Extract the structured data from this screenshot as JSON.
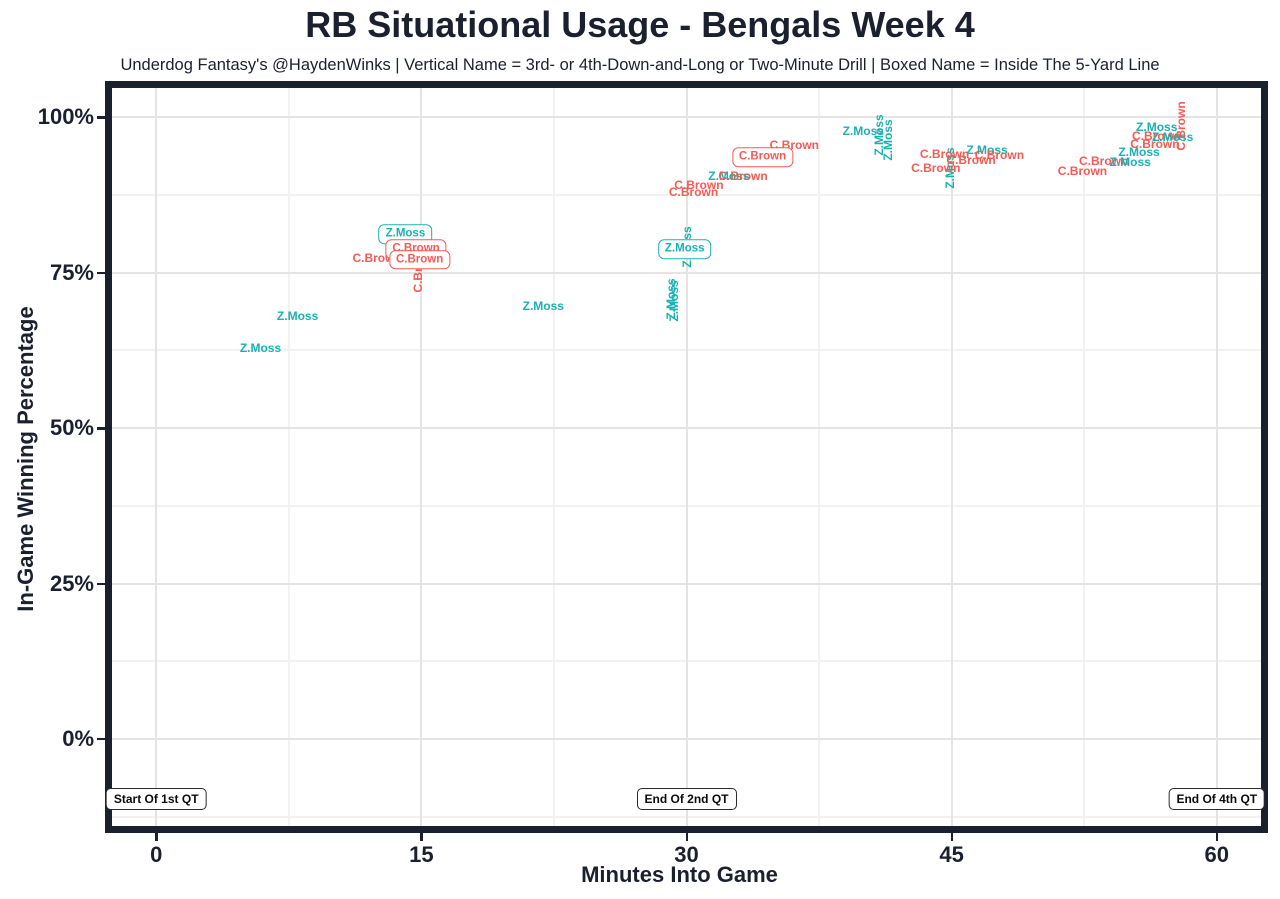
{
  "colors": {
    "axis_dark": "#1b202e",
    "grid_major": "#e4e4e4",
    "grid_minor": "#f2f2f2",
    "annotation_border": "#2b2b2b",
    "player_colors": {
      "Z.Moss": "#1bb0b2",
      "C.Brown": "#f25c55"
    }
  },
  "chart_data": {
    "type": "scatter",
    "title": "RB Situational Usage - Bengals Week 4",
    "subtitle": "Underdog Fantasy's @HaydenWinks | Vertical Name = 3rd- or 4th-Down-and-Long or Two-Minute Drill | Boxed Name = Inside The 5-Yard Line",
    "xlabel": "Minutes Into Game",
    "ylabel": "In-Game Winning Percentage",
    "xlim": [
      -2.5,
      62.5
    ],
    "ylim": [
      -14.0,
      104.7
    ],
    "x_tick_values": [
      0,
      15,
      30,
      45,
      60
    ],
    "x_tick_labels": [
      "0",
      "15",
      "30",
      "45",
      "60"
    ],
    "x_minor_ticks": [
      7.5,
      22.5,
      37.5,
      52.5
    ],
    "y_tick_values": [
      0,
      25,
      50,
      75,
      100
    ],
    "y_tick_labels": [
      "0%",
      "25%",
      "50%",
      "75%",
      "100%"
    ],
    "y_minor_ticks": [
      -12.5,
      12.5,
      37.5,
      62.5,
      87.5
    ],
    "grid": true,
    "legend": "none",
    "points": [
      {
        "player": "Z.Moss",
        "x": 5.9,
        "y": 62.9,
        "orientation": "h",
        "boxed": false
      },
      {
        "player": "Z.Moss",
        "x": 8.0,
        "y": 68.1,
        "orientation": "h",
        "boxed": false
      },
      {
        "player": "C.Brown",
        "x": 12.5,
        "y": 77.4,
        "orientation": "h",
        "boxed": false
      },
      {
        "player": "C.Brown",
        "x": 14.8,
        "y": 75.7,
        "orientation": "v",
        "boxed": false
      },
      {
        "player": "Z.Moss",
        "x": 14.1,
        "y": 81.2,
        "orientation": "h",
        "boxed": true
      },
      {
        "player": "C.Brown",
        "x": 14.7,
        "y": 78.8,
        "orientation": "h",
        "boxed": true
      },
      {
        "player": "C.Brown",
        "x": 14.9,
        "y": 77.1,
        "orientation": "h",
        "boxed": true
      },
      {
        "player": "Z.Moss",
        "x": 21.9,
        "y": 69.6,
        "orientation": "h",
        "boxed": false
      },
      {
        "player": "Z.Moss",
        "x": 29.1,
        "y": 70.7,
        "orientation": "v",
        "boxed": false
      },
      {
        "player": "Z.Moss",
        "x": 29.3,
        "y": 70.4,
        "orientation": "v",
        "boxed": false
      },
      {
        "player": "Z.Moss",
        "x": 30.0,
        "y": 79.1,
        "orientation": "v",
        "boxed": false
      },
      {
        "player": "Z.Moss",
        "x": 29.9,
        "y": 78.8,
        "orientation": "h",
        "boxed": true
      },
      {
        "player": "C.Brown",
        "x": 30.7,
        "y": 89.1,
        "orientation": "h",
        "boxed": false
      },
      {
        "player": "C.Brown",
        "x": 30.4,
        "y": 88.0,
        "orientation": "h",
        "boxed": false
      },
      {
        "player": "Z.Moss",
        "x": 32.4,
        "y": 90.5,
        "orientation": "h",
        "boxed": false
      },
      {
        "player": "C.Brown",
        "x": 33.2,
        "y": 90.5,
        "orientation": "h",
        "boxed": false
      },
      {
        "player": "C.Brown",
        "x": 34.3,
        "y": 93.6,
        "orientation": "h",
        "boxed": true
      },
      {
        "player": "C.Brown",
        "x": 36.1,
        "y": 95.5,
        "orientation": "h",
        "boxed": false
      },
      {
        "player": "Z.Moss",
        "x": 40.0,
        "y": 97.8,
        "orientation": "h",
        "boxed": false
      },
      {
        "player": "Z.Moss",
        "x": 40.9,
        "y": 97.1,
        "orientation": "v",
        "boxed": false
      },
      {
        "player": "Z.Moss",
        "x": 41.4,
        "y": 96.3,
        "orientation": "v",
        "boxed": false
      },
      {
        "player": "C.Brown",
        "x": 44.1,
        "y": 91.8,
        "orientation": "h",
        "boxed": false
      },
      {
        "player": "Z.Moss",
        "x": 44.9,
        "y": 91.8,
        "orientation": "v",
        "boxed": false
      },
      {
        "player": "C.Brown",
        "x": 44.6,
        "y": 94.1,
        "orientation": "h",
        "boxed": false
      },
      {
        "player": "C.Brown",
        "x": 46.1,
        "y": 93.1,
        "orientation": "h",
        "boxed": false
      },
      {
        "player": "Z.Moss",
        "x": 47.0,
        "y": 94.7,
        "orientation": "h",
        "boxed": false
      },
      {
        "player": "C.Brown",
        "x": 47.7,
        "y": 93.9,
        "orientation": "h",
        "boxed": false
      },
      {
        "player": "C.Brown",
        "x": 52.4,
        "y": 91.3,
        "orientation": "h",
        "boxed": false
      },
      {
        "player": "C.Brown",
        "x": 53.6,
        "y": 92.9,
        "orientation": "h",
        "boxed": false
      },
      {
        "player": "Z.Moss",
        "x": 55.1,
        "y": 92.8,
        "orientation": "h",
        "boxed": false
      },
      {
        "player": "Z.Moss",
        "x": 55.6,
        "y": 94.4,
        "orientation": "h",
        "boxed": false
      },
      {
        "player": "C.Brown",
        "x": 56.5,
        "y": 95.7,
        "orientation": "h",
        "boxed": false
      },
      {
        "player": "C.Brown",
        "x": 56.6,
        "y": 96.9,
        "orientation": "h",
        "boxed": false
      },
      {
        "player": "Z.Moss",
        "x": 57.5,
        "y": 96.8,
        "orientation": "h",
        "boxed": false
      },
      {
        "player": "Z.Moss",
        "x": 56.6,
        "y": 98.4,
        "orientation": "h",
        "boxed": false
      },
      {
        "player": "C.Brown",
        "x": 58.0,
        "y": 98.6,
        "orientation": "v",
        "boxed": false
      }
    ],
    "annotations": [
      {
        "label": "Start Of 1st QT",
        "x": 0.0,
        "y": -9.7
      },
      {
        "label": "End Of 2nd QT",
        "x": 30.0,
        "y": -9.7
      },
      {
        "label": "End Of 4th QT",
        "x": 60.0,
        "y": -9.7
      }
    ]
  }
}
